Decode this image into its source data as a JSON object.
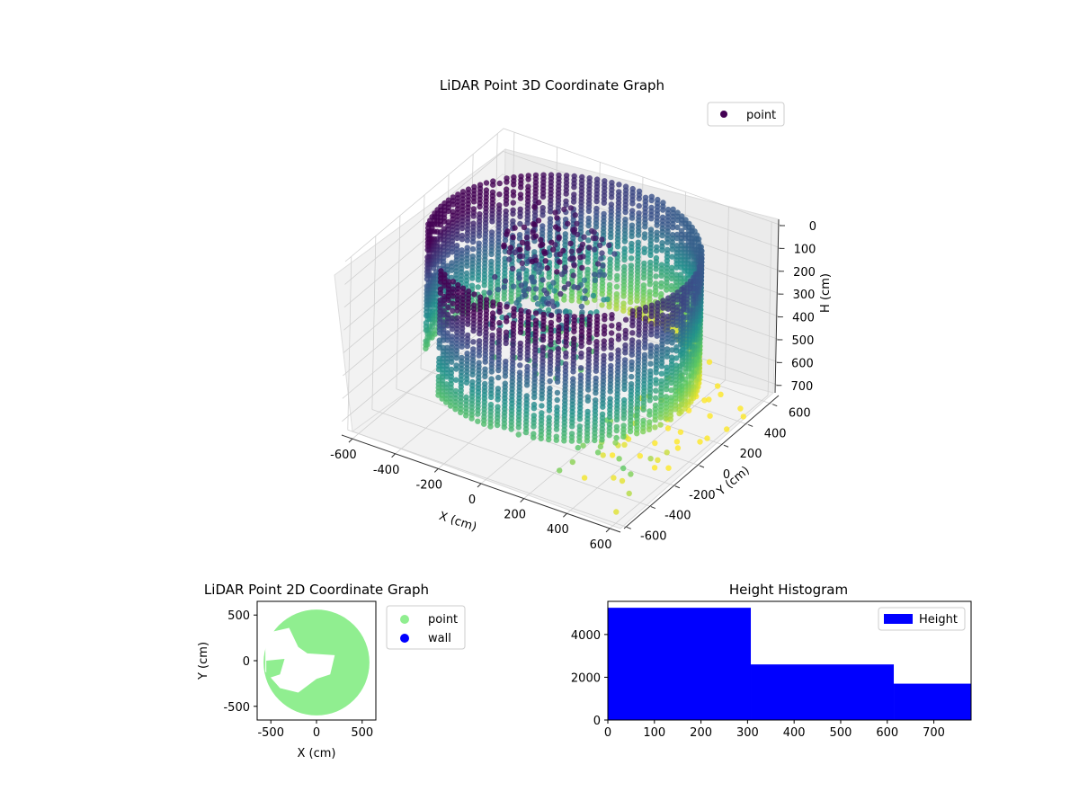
{
  "chart_data": [
    {
      "type": "scatter",
      "title": "LiDAR Point 3D Coordinate Graph",
      "xlabel": "X (cm)",
      "ylabel": "Y (cm)",
      "zlabel": "H (cm)",
      "x_ticks": [
        "-600",
        "-400",
        "-200",
        "0",
        "200",
        "400",
        "600"
      ],
      "y_ticks": [
        "-600",
        "-400",
        "-200",
        "0",
        "200",
        "400",
        "600"
      ],
      "z_ticks": [
        "0",
        "100",
        "200",
        "300",
        "400",
        "500",
        "600",
        "700"
      ],
      "xlim": [
        -650,
        650
      ],
      "ylim": [
        -650,
        650
      ],
      "zlim": [
        0,
        760
      ],
      "z_inverted": true,
      "colormap": "viridis",
      "legend": {
        "placement": "top-right",
        "entries": [
          "point"
        ],
        "marker_color": "#440154"
      },
      "grid": true
    },
    {
      "type": "scatter",
      "title": "LiDAR Point 2D Coordinate Graph",
      "xlabel": "X (cm)",
      "ylabel": "Y (cm)",
      "x_ticks": [
        -500,
        0,
        500
      ],
      "y_ticks": [
        500,
        0,
        -500
      ],
      "xlim": [
        -650,
        650
      ],
      "ylim": [
        -650,
        650
      ],
      "series": [
        {
          "name": "point",
          "color": "#90ee90"
        },
        {
          "name": "wall",
          "color": "#0000ff"
        }
      ],
      "legend": {
        "placement": "outside-right"
      }
    },
    {
      "type": "bar",
      "title": "Height Histogram",
      "bins": [
        [
          0,
          307
        ],
        [
          307,
          614
        ],
        [
          614,
          780
        ]
      ],
      "values": [
        5250,
        2600,
        1700
      ],
      "x_ticks": [
        0,
        100,
        200,
        300,
        400,
        500,
        600,
        700
      ],
      "y_ticks": [
        0,
        2000,
        4000
      ],
      "xlim": [
        0,
        780
      ],
      "ylim": [
        0,
        5550
      ],
      "series": [
        {
          "name": "Height",
          "color": "#0000ff"
        }
      ],
      "legend": {
        "placement": "top-right"
      }
    }
  ]
}
